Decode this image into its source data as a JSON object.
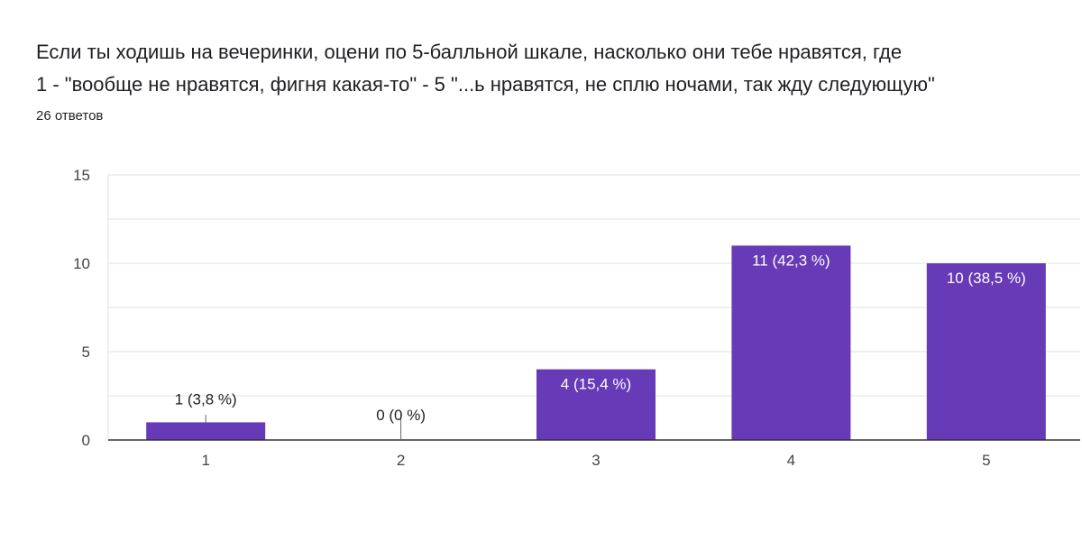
{
  "question": {
    "line1": "Если ты ходишь на вечеринки, оцени по 5-балльной шкале, насколько они тебе нравятся, где",
    "line2": "1 - \"вообще не нравятся, фигня какая-то\" - 5 \"...ь нравятся, не сплю ночами, так жду следующую\""
  },
  "responses_label": "26 ответов",
  "colors": {
    "bar": "#673ab7",
    "grid": "#e0e0e0",
    "axis": "#333333",
    "label_inside": "#ffffff",
    "label_outside": "#222222"
  },
  "chart_data": {
    "type": "bar",
    "categories": [
      "1",
      "2",
      "3",
      "4",
      "5"
    ],
    "values": [
      1,
      0,
      4,
      11,
      10
    ],
    "data_labels": [
      "1 (3,8 %)",
      "0 (0 %)",
      "4 (15,4 %)",
      "11 (42,3 %)",
      "10 (38,5 %)"
    ],
    "title": "",
    "xlabel": "",
    "ylabel": "",
    "ylim": [
      0,
      15
    ],
    "yticks": [
      "0",
      "5",
      "10",
      "15"
    ],
    "grid": true
  }
}
